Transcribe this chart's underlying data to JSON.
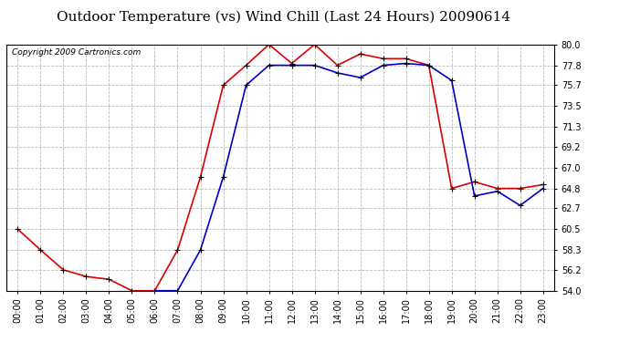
{
  "title": "Outdoor Temperature (vs) Wind Chill (Last 24 Hours) 20090614",
  "copyright": "Copyright 2009 Cartronics.com",
  "x_labels": [
    "00:00",
    "01:00",
    "02:00",
    "03:00",
    "04:00",
    "05:00",
    "06:00",
    "07:00",
    "08:00",
    "09:00",
    "10:00",
    "11:00",
    "12:00",
    "13:00",
    "14:00",
    "15:00",
    "16:00",
    "17:00",
    "18:00",
    "19:00",
    "20:00",
    "21:00",
    "22:00",
    "23:00"
  ],
  "temp_data": [
    60.5,
    58.3,
    56.2,
    55.5,
    55.2,
    54.0,
    54.0,
    58.3,
    66.0,
    75.7,
    77.8,
    80.0,
    78.0,
    80.0,
    77.8,
    79.0,
    78.5,
    78.5,
    77.8,
    64.8,
    65.5,
    64.8,
    64.8,
    65.2
  ],
  "wind_chill_data": [
    null,
    null,
    null,
    null,
    null,
    null,
    54.0,
    54.0,
    58.3,
    66.0,
    75.7,
    77.8,
    77.8,
    77.8,
    77.0,
    76.5,
    77.8,
    78.0,
    77.8,
    76.2,
    64.0,
    64.5,
    63.0,
    64.8
  ],
  "temp_color": "#dd0000",
  "wind_chill_color": "#0000cc",
  "ylim_min": 54.0,
  "ylim_max": 80.0,
  "yticks": [
    54.0,
    56.2,
    58.3,
    60.5,
    62.7,
    64.8,
    67.0,
    69.2,
    71.3,
    73.5,
    75.7,
    77.8,
    80.0
  ],
  "bg_color": "#ffffff",
  "grid_color": "#bbbbbb",
  "title_fontsize": 11,
  "copyright_fontsize": 6.5,
  "tick_fontsize": 7
}
